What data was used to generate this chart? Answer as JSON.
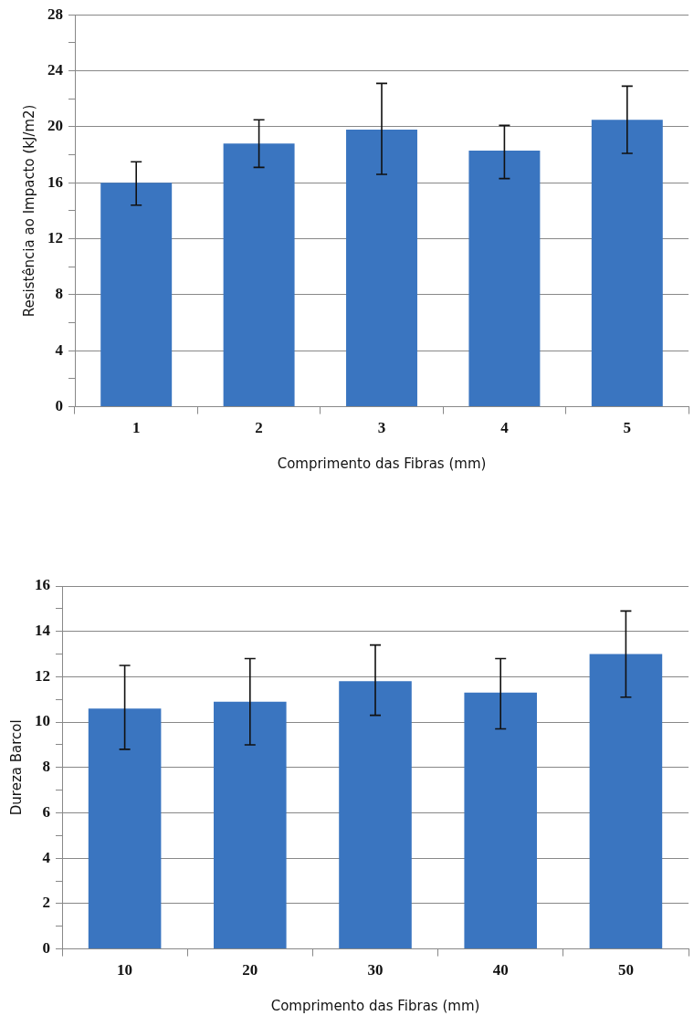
{
  "chart_data": [
    {
      "type": "bar",
      "xlabel": "Comprimento das Fibras (mm)",
      "ylabel": "Resistência ao Impacto (kJ/m2)",
      "categories": [
        "1",
        "2",
        "3",
        "4",
        "5"
      ],
      "values": [
        16.0,
        18.8,
        19.8,
        18.3,
        20.5
      ],
      "errors": [
        [
          14.4,
          17.5
        ],
        [
          17.1,
          20.5
        ],
        [
          16.6,
          23.1
        ],
        [
          16.3,
          20.1
        ],
        [
          18.1,
          22.9
        ]
      ],
      "color": "#3a75c0",
      "ylim": [
        0,
        28
      ],
      "yticks": [
        0,
        {
          "value": 2,
          "label": null
        },
        4,
        {
          "value": 6,
          "label": null
        },
        8,
        {
          "value": 10,
          "label": null
        },
        12,
        {
          "value": 14,
          "label": null
        },
        16,
        {
          "value": 18,
          "label": null
        },
        20,
        {
          "value": 22,
          "label": null
        },
        24,
        {
          "value": 26,
          "label": null
        },
        28
      ],
      "grid": "y",
      "legend": false
    },
    {
      "type": "bar",
      "xlabel": "Comprimento das Fibras (mm)",
      "ylabel": "Dureza Barcol",
      "categories": [
        "10",
        "20",
        "30",
        "40",
        "50"
      ],
      "values": [
        10.6,
        10.9,
        11.8,
        11.3,
        13.0
      ],
      "errors": [
        [
          8.8,
          12.5
        ],
        [
          9.0,
          12.8
        ],
        [
          10.3,
          13.4
        ],
        [
          9.7,
          12.8
        ],
        [
          11.1,
          14.9
        ]
      ],
      "color": "#3a75c0",
      "ylim": [
        0,
        16
      ],
      "yticks": [
        0,
        {
          "value": 1,
          "label": null
        },
        2,
        {
          "value": 3,
          "label": null
        },
        4,
        {
          "value": 5,
          "label": null
        },
        6,
        {
          "value": 7,
          "label": null
        },
        8,
        {
          "value": 9,
          "label": null
        },
        10,
        {
          "value": 11,
          "label": null
        },
        12,
        {
          "value": 13,
          "label": null
        },
        14,
        {
          "value": 15,
          "label": null
        },
        16
      ],
      "grid": "y",
      "legend": false
    }
  ]
}
